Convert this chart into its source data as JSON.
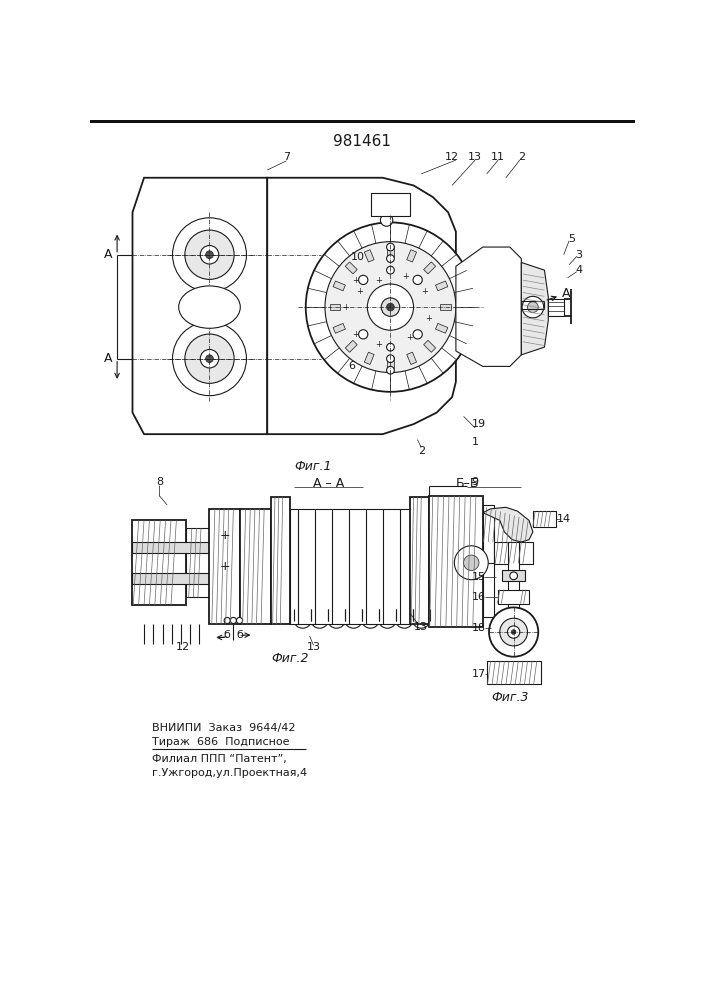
{
  "title": "981461",
  "bg_color": "#ffffff",
  "fig1_label": "Фиг.1",
  "fig2_label": "Фиг.2",
  "fig3_label": "Фиг.3",
  "section_aa_label": "А – А",
  "section_bb_label": "Б–Б",
  "footer_line1": "ВНИИПИ  Заказ  9644/42",
  "footer_line2": "Тираж  686  Подписное",
  "footer_line3": "Филиал ППП “Патент”,",
  "footer_line4": "г.Ужгород,ул.Проектная,4",
  "line_color": "#1a1a1a"
}
